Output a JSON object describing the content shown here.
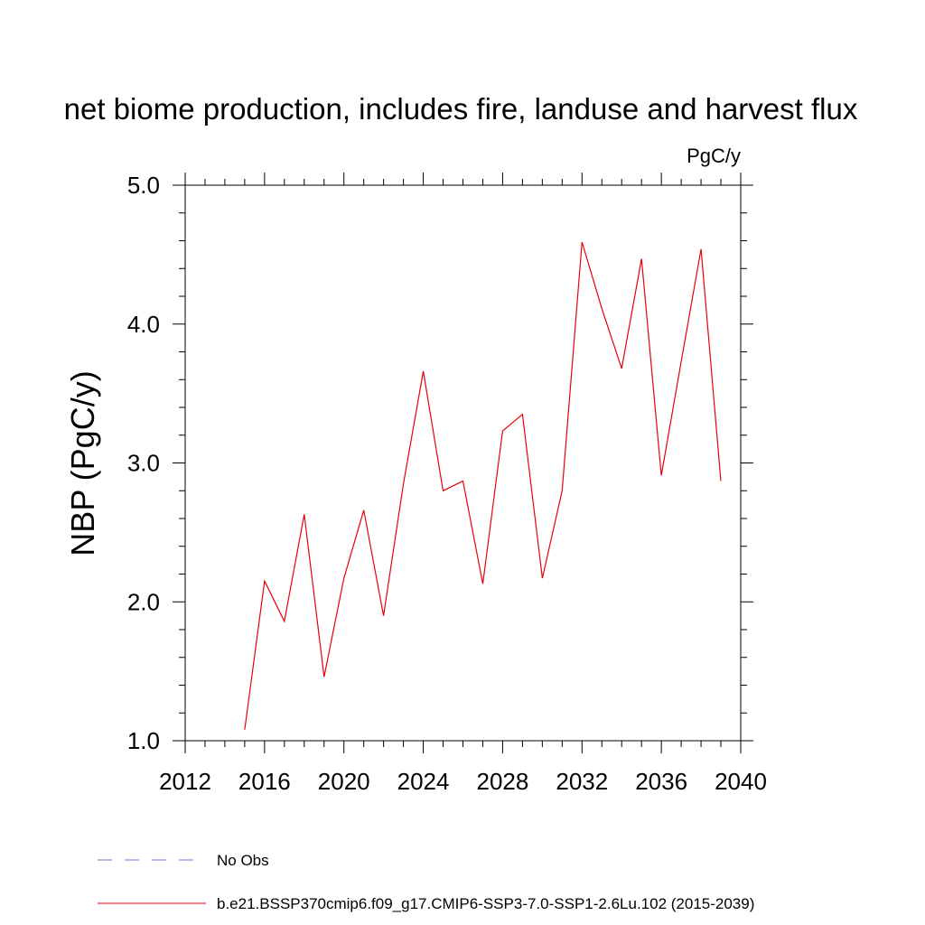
{
  "chart_data": {
    "type": "line",
    "title": "net biome production, includes fire, landuse and harvest flux",
    "units": "PgC/y",
    "xlabel": "",
    "ylabel": "NBP  (PgC/y)",
    "xlim": [
      2012,
      2040
    ],
    "ylim": [
      1.0,
      5.0
    ],
    "xticks": [
      2012,
      2016,
      2020,
      2024,
      2028,
      2032,
      2036,
      2040
    ],
    "xtick_labels": [
      "2012",
      "2016",
      "2020",
      "2024",
      "2028",
      "2032",
      "2036",
      "2040"
    ],
    "yticks": [
      1.0,
      2.0,
      3.0,
      4.0,
      5.0
    ],
    "ytick_labels": [
      "1.0",
      "2.0",
      "3.0",
      "4.0",
      "5.0"
    ],
    "grid": false,
    "legend_position": "bottom",
    "series": [
      {
        "name": "b.e21.BSSP370cmip6.f09_g17.CMIP6-SSP3-7.0-SSP1-2.6Lu.102 (2015-2039)",
        "color": "#e8000b",
        "style": "solid",
        "x": [
          2015,
          2016,
          2017,
          2018,
          2019,
          2020,
          2021,
          2022,
          2023,
          2024,
          2025,
          2026,
          2027,
          2028,
          2029,
          2030,
          2031,
          2032,
          2033,
          2034,
          2035,
          2036,
          2037,
          2038,
          2039
        ],
        "y": [
          1.08,
          2.15,
          1.86,
          2.63,
          1.46,
          2.17,
          2.66,
          1.9,
          2.85,
          3.66,
          2.8,
          2.87,
          2.13,
          3.23,
          3.35,
          2.17,
          2.8,
          4.59,
          4.11,
          3.68,
          4.47,
          2.91,
          3.73,
          4.54,
          2.87
        ]
      }
    ],
    "legend": [
      {
        "label": "No Obs",
        "color": "#7b6fd0",
        "style": "dashed"
      },
      {
        "label": "b.e21.BSSP370cmip6.f09_g17.CMIP6-SSP3-7.0-SSP1-2.6Lu.102 (2015-2039)",
        "color": "#e8000b",
        "style": "solid"
      }
    ]
  }
}
